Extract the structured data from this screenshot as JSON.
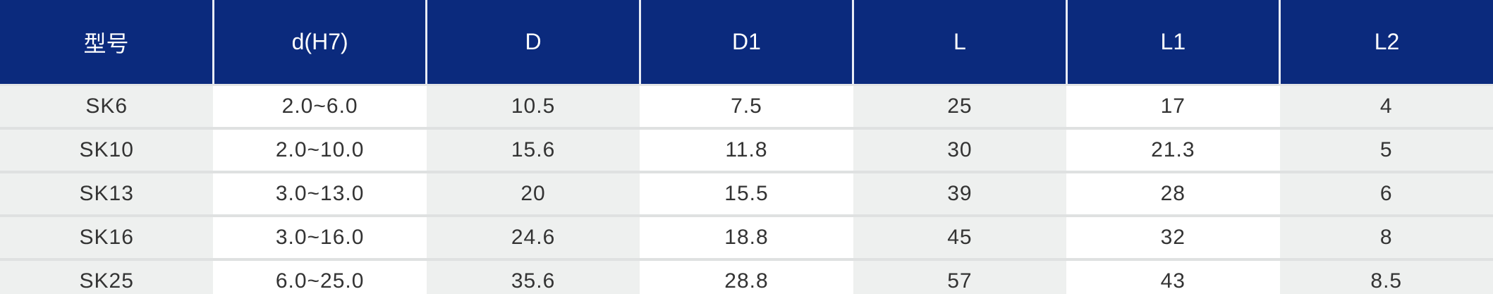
{
  "table": {
    "header": [
      "型号",
      "d(H7)",
      "D",
      "D1",
      "L",
      "L1",
      "L2"
    ],
    "rows": [
      [
        "SK6",
        "2.0~6.0",
        "10.5",
        "7.5",
        "25",
        "17",
        "4"
      ],
      [
        "SK10",
        "2.0~10.0",
        "15.6",
        "11.8",
        "30",
        "21.3",
        "5"
      ],
      [
        "SK13",
        "3.0~13.0",
        "20",
        "15.5",
        "39",
        "28",
        "6"
      ],
      [
        "SK16",
        "3.0~16.0",
        "24.6",
        "18.8",
        "45",
        "32",
        "8"
      ],
      [
        "SK25",
        "6.0~25.0",
        "35.6",
        "28.8",
        "57",
        "43",
        "8.5"
      ]
    ]
  }
}
